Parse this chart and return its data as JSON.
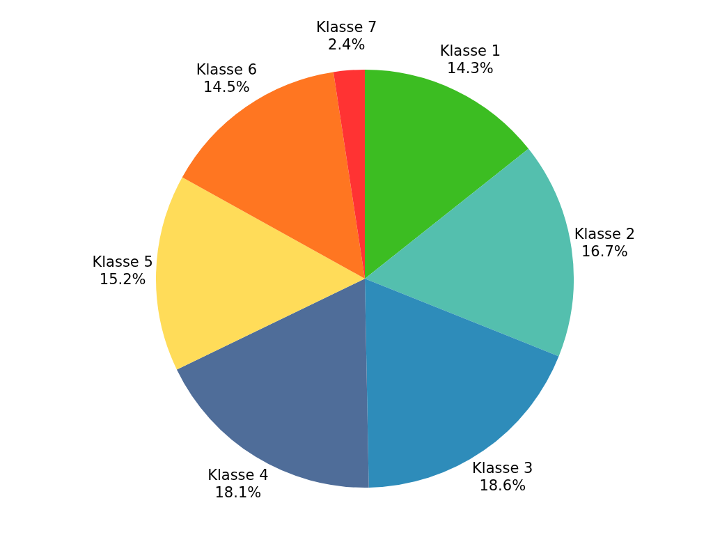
{
  "chart_data": {
    "type": "pie",
    "categories": [
      "Klasse 1",
      "Klasse 2",
      "Klasse 3",
      "Klasse 4",
      "Klasse 5",
      "Klasse 6",
      "Klasse 7"
    ],
    "values": [
      14.3,
      16.7,
      18.6,
      18.1,
      15.2,
      14.5,
      2.4
    ],
    "colors": [
      "#3cbd22",
      "#54bfae",
      "#2e8cba",
      "#4f6d99",
      "#ffdc59",
      "#ff7621",
      "#ff3333"
    ],
    "value_labels": [
      "14.3%",
      "16.7%",
      "18.6%",
      "18.1%",
      "15.2%",
      "14.5%",
      "2.4%"
    ],
    "legend": false
  }
}
